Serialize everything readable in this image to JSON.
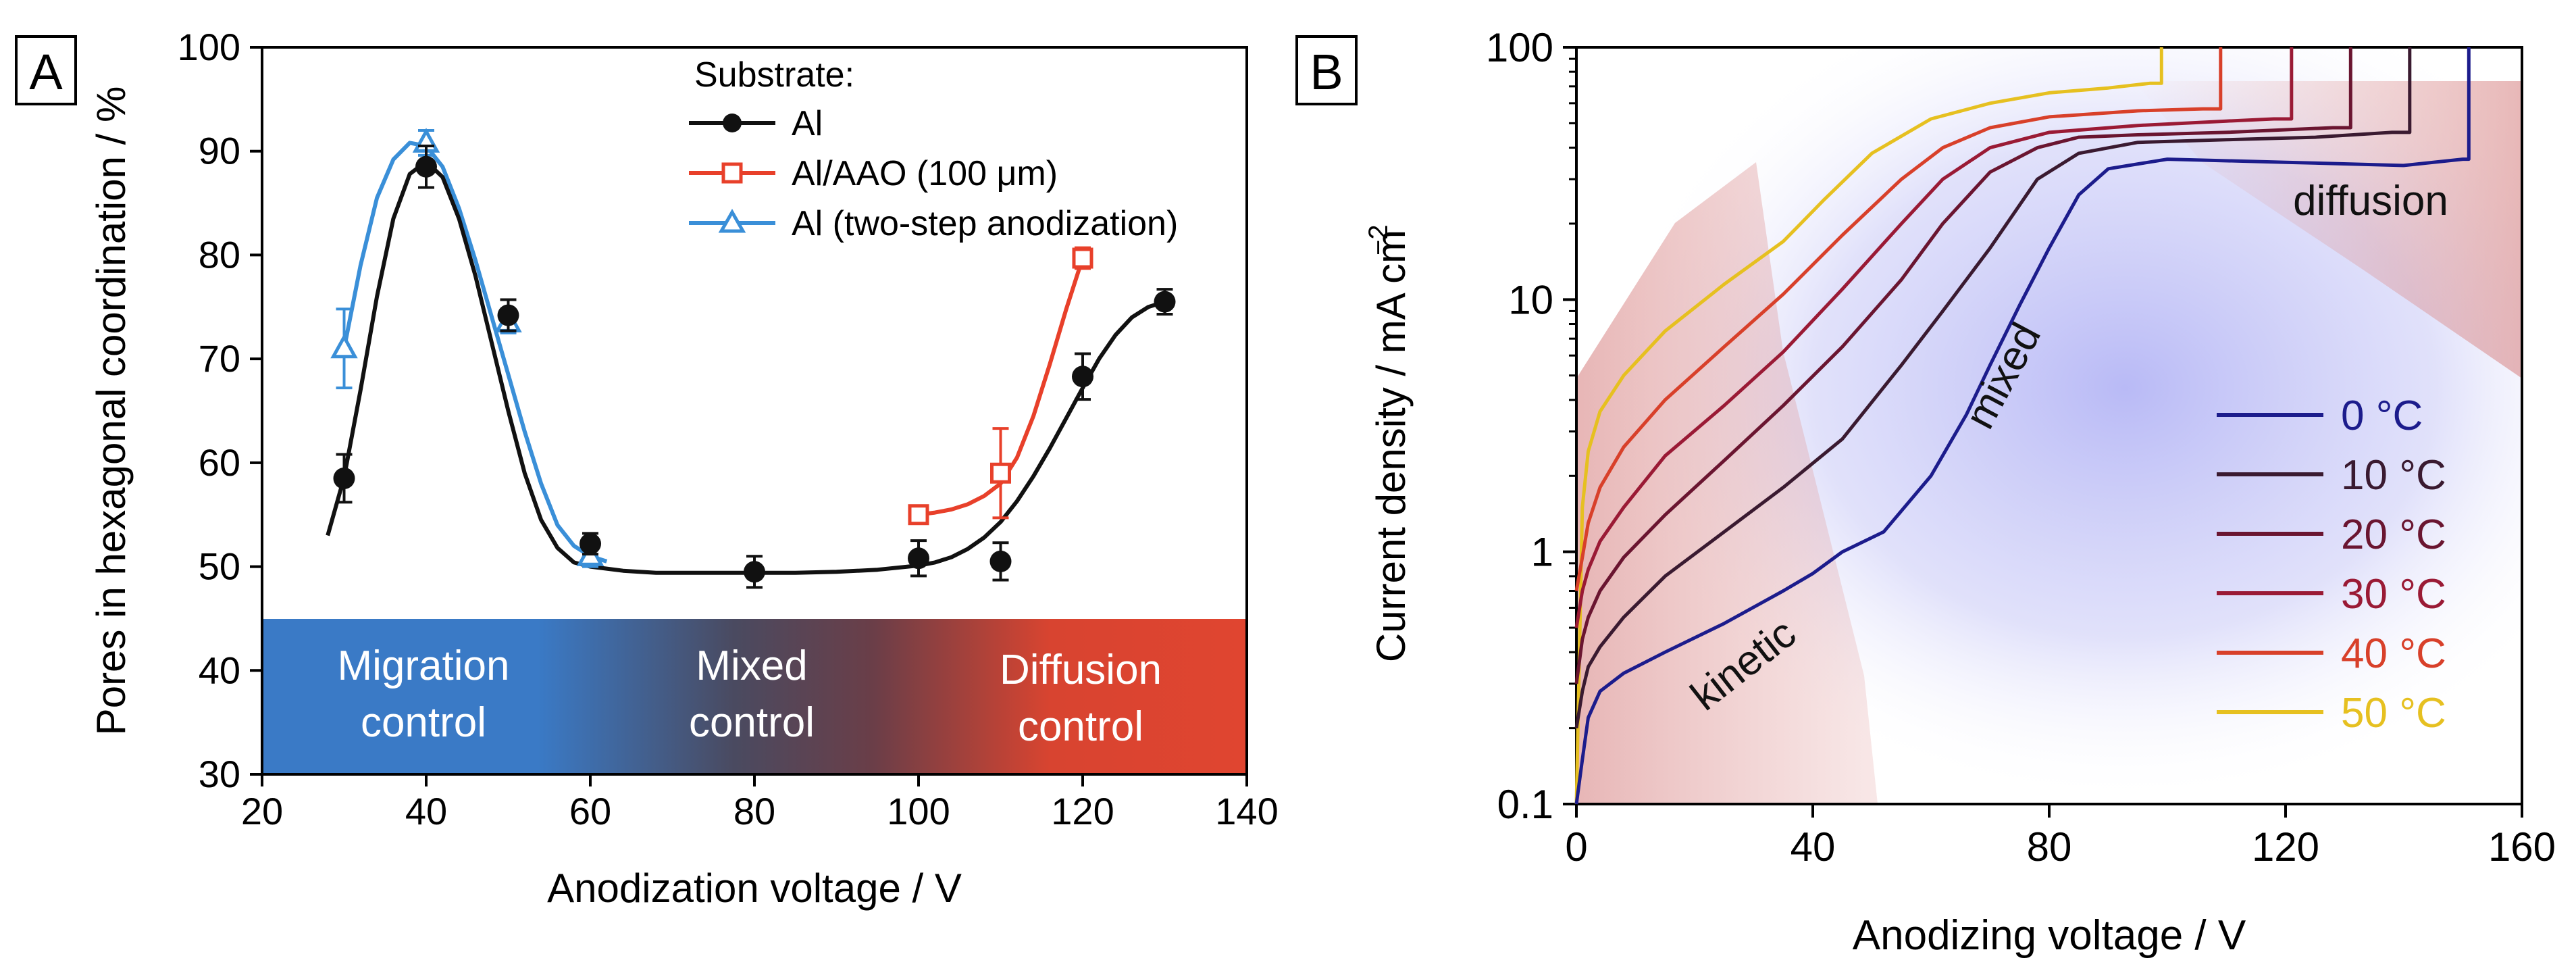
{
  "chart_data": [
    {
      "panel": "A",
      "type": "scatter",
      "xlabel": "Anodization voltage / V",
      "ylabel": "Pores in hexagonal coordination / %",
      "xlim": [
        20,
        140
      ],
      "ylim": [
        30,
        100
      ],
      "xticks": [
        20,
        40,
        60,
        80,
        100,
        120,
        140
      ],
      "yticks": [
        30,
        40,
        50,
        60,
        70,
        80,
        90,
        100
      ],
      "legend_title": "Substrate:",
      "legend_position": "top-right",
      "series": [
        {
          "name": "Al",
          "color": "#111111",
          "marker": "filled-circle",
          "x": [
            30,
            40,
            50,
            60,
            80,
            100,
            110,
            120,
            130
          ],
          "y": [
            58.5,
            88.5,
            74.2,
            52.2,
            49.5,
            50.8,
            50.5,
            68.3,
            75.5
          ],
          "err": [
            2.3,
            2.0,
            1.5,
            1.0,
            1.5,
            1.7,
            1.8,
            2.2,
            1.2
          ],
          "fit_x": [
            28,
            30,
            32,
            34,
            36,
            38,
            40,
            42,
            44,
            46,
            48,
            50,
            52,
            54,
            56,
            58,
            60,
            62,
            64,
            66,
            68,
            70,
            75,
            80,
            85,
            90,
            95,
            100,
            102,
            104,
            106,
            108,
            110,
            112,
            114,
            116,
            118,
            120,
            122,
            124,
            126,
            128,
            130
          ],
          "fit_y": [
            53,
            58.6,
            67,
            76,
            83.5,
            87.8,
            89,
            87.5,
            83.5,
            78,
            71.5,
            65,
            59,
            54.5,
            51.8,
            50.4,
            50,
            49.8,
            49.6,
            49.5,
            49.4,
            49.4,
            49.4,
            49.4,
            49.4,
            49.5,
            49.7,
            50.1,
            50.4,
            50.9,
            51.7,
            52.8,
            54.3,
            56.3,
            58.7,
            61.4,
            64.3,
            67.2,
            70,
            72.3,
            74,
            75,
            75.5
          ]
        },
        {
          "name": "Al/AAO (100 μm)",
          "color": "#e8402a",
          "marker": "open-square",
          "x": [
            100,
            110,
            120
          ],
          "y": [
            55,
            59,
            79.7
          ],
          "err": [
            0,
            4.3,
            1.0
          ],
          "fit_x": [
            100,
            102,
            104,
            106,
            108,
            110,
            112,
            114,
            116,
            118,
            120
          ],
          "fit_y": [
            55,
            55.2,
            55.5,
            56,
            56.8,
            58,
            60.5,
            64.5,
            69.5,
            74.8,
            79.7
          ]
        },
        {
          "name": "Al (two-step anodization)",
          "color": "#3a8fd8",
          "marker": "open-triangle",
          "x": [
            30,
            40,
            50,
            60
          ],
          "y": [
            71,
            90.8,
            73.5,
            51
          ],
          "err": [
            3.8,
            1.2,
            1.0,
            1.0
          ],
          "fit_x": [
            30,
            32,
            34,
            36,
            38,
            40,
            42,
            44,
            46,
            48,
            50,
            52,
            54,
            56,
            58,
            60,
            62
          ],
          "fit_y": [
            71,
            79,
            85.5,
            89.2,
            90.8,
            90.5,
            88.5,
            84.5,
            79.5,
            74,
            68.5,
            63,
            58,
            54,
            52,
            51,
            50.5
          ]
        }
      ],
      "regions": [
        {
          "label_line1": "Migration",
          "label_line2": "control",
          "color": "#3a78c5"
        },
        {
          "label_line1": "Mixed",
          "label_line2": "control",
          "color": "#4a4a5c"
        },
        {
          "label_line1": "Diffusion",
          "label_line2": "control",
          "color": "#e04530"
        }
      ],
      "region_y_range": [
        30,
        45
      ]
    },
    {
      "panel": "B",
      "type": "line",
      "xlabel": "Anodizing voltage / V",
      "ylabel_main": "Current density / mA cm",
      "ylabel_sup": "−2",
      "yscale": "log",
      "xlim": [
        0,
        160
      ],
      "ylim": [
        0.1,
        100
      ],
      "xticks": [
        0,
        40,
        80,
        120,
        160
      ],
      "yticks": [
        0.1,
        1,
        10,
        100
      ],
      "ytick_labels": [
        "0.1",
        "1",
        "10",
        "100"
      ],
      "legend_position": "bottom-right",
      "annotations": [
        "kinetic",
        "mixed",
        "diffusion"
      ],
      "series": [
        {
          "name": "0 °C",
          "color": "#1c1c8c",
          "breakdown_v": 151,
          "x": [
            0,
            1,
            2,
            4,
            8,
            15,
            25,
            35,
            40,
            45,
            52,
            60,
            66,
            70,
            75,
            80,
            85,
            90,
            100,
            120,
            140,
            150
          ],
          "y": [
            0.1,
            0.15,
            0.22,
            0.28,
            0.33,
            0.4,
            0.52,
            0.7,
            0.82,
            1.0,
            1.2,
            2.0,
            3.5,
            5.5,
            9.5,
            16,
            26,
            33,
            36,
            35,
            34,
            36
          ]
        },
        {
          "name": "10 °C",
          "color": "#3a1a30",
          "breakdown_v": 141,
          "x": [
            0,
            1,
            2,
            4,
            8,
            15,
            25,
            35,
            45,
            55,
            62,
            70,
            78,
            85,
            95,
            110,
            125,
            138
          ],
          "y": [
            0.2,
            0.28,
            0.35,
            0.42,
            0.55,
            0.8,
            1.2,
            1.8,
            2.8,
            5.5,
            9,
            16,
            30,
            38,
            42,
            43,
            44,
            46
          ]
        },
        {
          "name": "20 °C",
          "color": "#6a1530",
          "breakdown_v": 131,
          "x": [
            0,
            1,
            2,
            4,
            8,
            15,
            25,
            35,
            45,
            55,
            62,
            70,
            78,
            85,
            95,
            110,
            128
          ],
          "y": [
            0.3,
            0.45,
            0.55,
            0.7,
            0.95,
            1.4,
            2.3,
            3.8,
            6.5,
            12,
            20,
            32,
            40,
            44,
            45,
            46,
            48
          ]
        },
        {
          "name": "30 °C",
          "color": "#9a1a35",
          "breakdown_v": 121,
          "x": [
            0,
            1,
            2,
            4,
            8,
            15,
            25,
            35,
            45,
            55,
            62,
            70,
            80,
            95,
            110,
            118
          ],
          "y": [
            0.5,
            0.7,
            0.85,
            1.1,
            1.5,
            2.4,
            3.8,
            6.2,
            11,
            20,
            30,
            40,
            46,
            49,
            51,
            52
          ]
        },
        {
          "name": "40 °C",
          "color": "#d8402a",
          "breakdown_v": 109,
          "x": [
            0,
            1,
            2,
            4,
            8,
            15,
            25,
            35,
            45,
            55,
            62,
            70,
            80,
            95,
            106
          ],
          "y": [
            0.7,
            0.95,
            1.3,
            1.8,
            2.6,
            4.0,
            6.5,
            10.5,
            18,
            30,
            40,
            48,
            53,
            56,
            57
          ]
        },
        {
          "name": "50 °C",
          "color": "#e6c020",
          "breakdown_v": 99,
          "x": [
            0,
            1,
            2,
            4,
            8,
            15,
            25,
            35,
            42,
            50,
            60,
            70,
            80,
            90,
            97
          ],
          "y": [
            0.1,
            1.5,
            2.5,
            3.6,
            5.0,
            7.5,
            11.5,
            17,
            25,
            38,
            52,
            60,
            66,
            69,
            72
          ]
        }
      ]
    }
  ]
}
